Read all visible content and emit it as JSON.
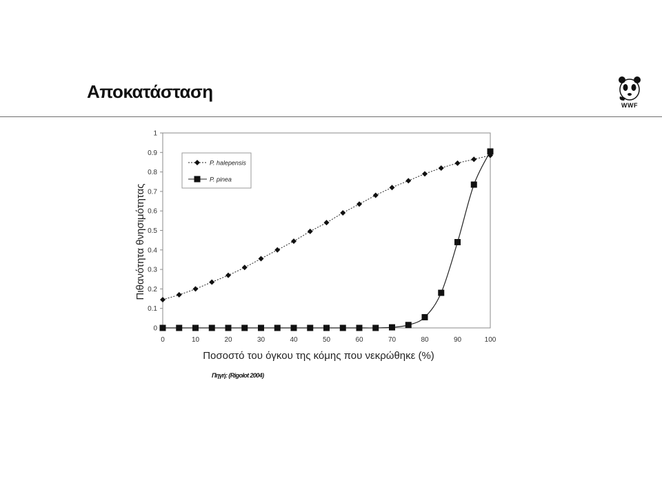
{
  "slide": {
    "title": "Αποκατάσταση",
    "logo_text": "WWF",
    "logo_icon": "panda-icon",
    "source_note": "Πηγή: (Rigolot 2004)"
  },
  "chart_data": {
    "type": "line",
    "title": "",
    "xlabel": "Ποσοστό του όγκου της κόμης που νεκρώθηκε (%)",
    "ylabel": "Πιθανότητα θνησιμότητας",
    "xlim": [
      0,
      100
    ],
    "ylim": [
      0,
      1
    ],
    "x_ticks": [
      0,
      10,
      20,
      30,
      40,
      50,
      60,
      70,
      80,
      90,
      100
    ],
    "x_tick_labels": [
      "0",
      "10",
      "20",
      "30",
      "40",
      "50",
      "60",
      "70",
      "80",
      "90",
      "100"
    ],
    "y_ticks": [
      0,
      0.1,
      0.2,
      0.3,
      0.4,
      0.5,
      0.6,
      0.7,
      0.8,
      0.9,
      1
    ],
    "y_tick_labels": [
      "0",
      "0.1",
      "0.2",
      "0.3",
      "0.4",
      "0.5",
      "0.6",
      "0.7",
      "0.8",
      "0.9",
      "1"
    ],
    "grid": false,
    "legend": "top-left",
    "x": [
      0,
      5,
      10,
      15,
      20,
      25,
      30,
      35,
      40,
      45,
      50,
      55,
      60,
      65,
      70,
      75,
      80,
      85,
      90,
      95,
      100
    ],
    "series": [
      {
        "name": "P. halepensis",
        "marker": "diamond",
        "line": "dotted",
        "color": "#222222",
        "values": [
          0.145,
          0.17,
          0.2,
          0.235,
          0.27,
          0.31,
          0.355,
          0.4,
          0.445,
          0.495,
          0.54,
          0.59,
          0.635,
          0.68,
          0.72,
          0.755,
          0.79,
          0.82,
          0.845,
          0.865,
          0.885
        ]
      },
      {
        "name": "P. pinea",
        "marker": "square",
        "line": "solid",
        "color": "#222222",
        "values": [
          0,
          0,
          0,
          0,
          0,
          0,
          0,
          0,
          0,
          0,
          0,
          0,
          0,
          0,
          0.003,
          0.015,
          0.055,
          0.18,
          0.44,
          0.735,
          0.905
        ]
      }
    ]
  }
}
